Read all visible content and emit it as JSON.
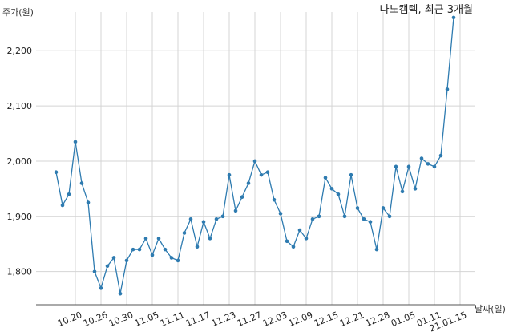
{
  "chart_data": {
    "type": "line",
    "title": "나노캠텍, 최근 3개월",
    "ylabel": "주가(원)",
    "xlabel": "날짜(일)",
    "ylim": [
      1740,
      2270
    ],
    "yticks": [
      1800,
      1900,
      2000,
      2100,
      2200
    ],
    "ytick_labels": [
      "1,800",
      "1,900",
      "2,000",
      "2,100",
      "2,200"
    ],
    "xtick_labels": [
      "10.20",
      "10.26",
      "10.30",
      "11.05",
      "11.11",
      "11.17",
      "11.23",
      "11.27",
      "12.03",
      "12.09",
      "12.15",
      "12.21",
      "12.28",
      "01.05",
      "01.11",
      "21.01.15"
    ],
    "xtick_index": [
      3,
      7,
      11,
      15,
      19,
      23,
      27,
      31,
      35,
      39,
      43,
      47,
      51,
      55,
      59,
      63
    ],
    "grid": true,
    "line_color": "#2e7bb0",
    "series": [
      {
        "values": [
          1980,
          1920,
          1940,
          2035,
          1960,
          1925,
          1800,
          1770,
          1810,
          1825,
          1760,
          1820,
          1840,
          1840,
          1860,
          1830,
          1860,
          1840,
          1825,
          1820,
          1870,
          1895,
          1845,
          1890,
          1860,
          1895,
          1900,
          1975,
          1910,
          1935,
          1960,
          2000,
          1975,
          1980,
          1930,
          1905,
          1855,
          1845,
          1875,
          1860,
          1895,
          1900,
          1970,
          1950,
          1940,
          1900,
          1975,
          1915,
          1895,
          1890,
          1840,
          1915,
          1900,
          1990,
          1945,
          1990,
          1950,
          2005,
          1995,
          1990,
          2010,
          2130,
          2260
        ]
      }
    ]
  }
}
